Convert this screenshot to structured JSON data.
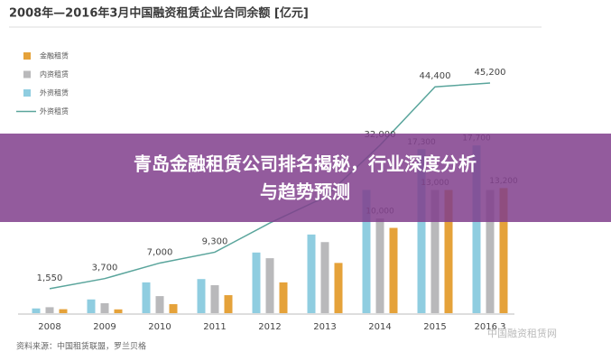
{
  "chart_data": {
    "type": "bar",
    "title": "2008年—2016年3月中国融资租赁企业合同余额 [亿元]",
    "categories": [
      "2008",
      "2009",
      "2010",
      "2011",
      "2012",
      "2013",
      "2014",
      "2015",
      "2016.3"
    ],
    "ylim": [
      0,
      30000
    ],
    "y2lim": [
      -3640,
      56700
    ],
    "series": [
      {
        "name": "外资租赁",
        "color": "#8fcde0",
        "values": [
          500,
          1450,
          3250,
          3600,
          6400,
          8300,
          13000,
          17300,
          17700
        ],
        "value_labels": [
          null,
          null,
          null,
          null,
          null,
          null,
          null,
          "17,300",
          "17,700"
        ]
      },
      {
        "name": "内资租赁",
        "color": "#b9b9bb",
        "values": [
          630,
          1050,
          1800,
          2950,
          5800,
          7500,
          10000,
          13000,
          13000
        ],
        "value_labels": [
          null,
          null,
          null,
          null,
          null,
          null,
          "10,000",
          "13,000",
          null
        ]
      },
      {
        "name": "金融租赁",
        "color": "#e5a23a",
        "values": [
          420,
          400,
          950,
          1900,
          3250,
          5300,
          9000,
          13000,
          13200
        ],
        "value_labels": [
          null,
          null,
          null,
          null,
          null,
          null,
          null,
          null,
          "13,200"
        ]
      },
      {
        "name": "外资租赁",
        "color": "#5aa59c",
        "type": "line",
        "axis": "y2",
        "values": [
          1550,
          3700,
          7000,
          9300,
          15500,
          21000,
          32000,
          44400,
          45200
        ],
        "value_labels": [
          "1,550",
          "3,700",
          "7,000",
          "9,300",
          null,
          null,
          "32,000",
          "44,400",
          "45,200"
        ]
      }
    ],
    "legend_order": [
      2,
      1,
      0,
      3
    ],
    "source": "资料来源：中国租赁联盟，罗兰贝格"
  },
  "watermark": "中国融资租赁网",
  "overlay": {
    "lines": [
      "青岛金融租赁公司排名揭秘，行业深度分析",
      "与趋势预测"
    ]
  }
}
